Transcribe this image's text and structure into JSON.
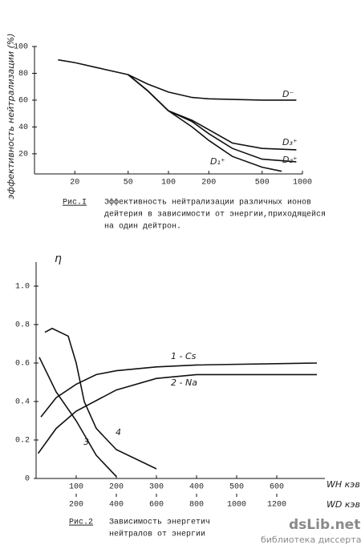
{
  "chart_data": [
    {
      "type": "line",
      "y_label": "эффективность нейтрализации (%)",
      "log_x": true,
      "xlim": [
        10,
        1000
      ],
      "xticks": [
        20,
        50,
        100,
        200,
        500,
        1000
      ],
      "ylim": [
        5,
        100
      ],
      "yticks": [
        20,
        40,
        60,
        80,
        100
      ],
      "caption_label": "Рис.I",
      "caption": [
        "Эффективность нейтрализации различных ионов",
        "дейтерия в зависимости от энергии,приходящейся",
        "на один дейтрон."
      ],
      "series": [
        {
          "name": "D⁻",
          "color": "#111",
          "x": [
            15,
            20,
            30,
            50,
            70,
            100,
            150,
            200,
            500,
            900
          ],
          "values": [
            90,
            88,
            84,
            79,
            72,
            66,
            62,
            61,
            60,
            60
          ]
        },
        {
          "name": "D₃⁺",
          "color": "#111",
          "x": [
            50,
            70,
            100,
            150,
            200,
            300,
            500,
            900
          ],
          "values": [
            79,
            67,
            52,
            45,
            38,
            28,
            24,
            23
          ]
        },
        {
          "name": "D₂⁺",
          "color": "#111",
          "x": [
            50,
            70,
            100,
            150,
            200,
            300,
            500,
            900
          ],
          "values": [
            79,
            67,
            52,
            44,
            35,
            24,
            16,
            14
          ]
        },
        {
          "name": "D₁⁺",
          "color": "#111",
          "x": [
            50,
            70,
            100,
            150,
            200,
            300,
            500,
            700
          ],
          "values": [
            79,
            67,
            52,
            40,
            30,
            18,
            10,
            7
          ]
        }
      ]
    },
    {
      "type": "line",
      "y_label": "η",
      "x_label": "WH кэв",
      "x2_label": "WD кэв",
      "xlim": [
        0,
        720
      ],
      "xticks": [
        100,
        200,
        300,
        400,
        500,
        600
      ],
      "x2lim": [
        0,
        1440
      ],
      "x2ticks": [
        200,
        400,
        600,
        800,
        1000,
        1200
      ],
      "ylim": [
        0,
        1.1
      ],
      "yticks": [
        0,
        0.2,
        0.4,
        0.6,
        0.8,
        {
          "value": 1,
          "label": "1.0"
        }
      ],
      "caption_label": "Рис.2",
      "caption": [
        "Зависимость энергетич",
        "нейтралов от энергии"
      ],
      "series": [
        {
          "name": "1 - Cs",
          "color": "#111",
          "x": [
            12,
            50,
            100,
            150,
            200,
            300,
            400,
            700
          ],
          "values": [
            0.32,
            0.42,
            0.49,
            0.54,
            0.56,
            0.58,
            0.59,
            0.6
          ]
        },
        {
          "name": "2 - Na",
          "color": "#111",
          "x": [
            5,
            50,
            100,
            200,
            300,
            400,
            700
          ],
          "values": [
            0.13,
            0.26,
            0.35,
            0.46,
            0.52,
            0.54,
            0.54
          ]
        },
        {
          "name": "3",
          "color": "#111",
          "x": [
            8,
            50,
            100,
            150,
            200
          ],
          "values": [
            0.63,
            0.45,
            0.3,
            0.12,
            0.01
          ]
        },
        {
          "name": "4",
          "color": "#111",
          "x": [
            22,
            40,
            80,
            100,
            120,
            150,
            200,
            300
          ],
          "values": [
            0.76,
            0.78,
            0.74,
            0.6,
            0.4,
            0.26,
            0.15,
            0.05
          ]
        }
      ]
    }
  ],
  "watermark": {
    "brand": "dsLib.net",
    "subtitle": "библиотека диссертаций"
  }
}
